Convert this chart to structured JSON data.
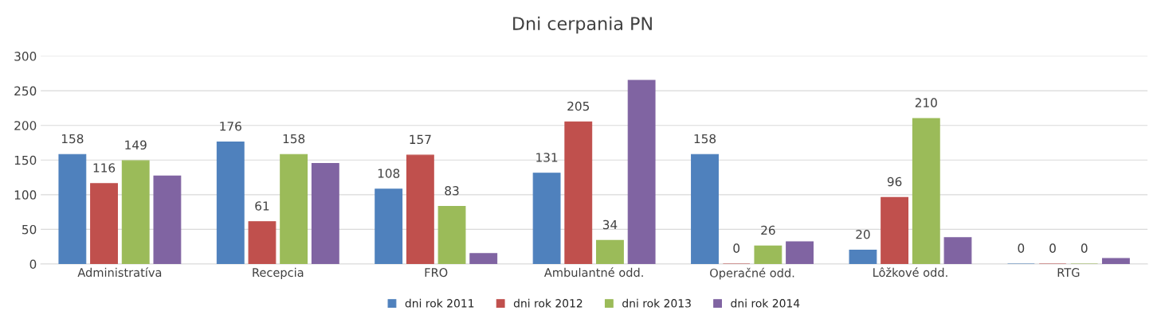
{
  "chart_data": {
    "type": "bar",
    "title": "Dni cerpania PN",
    "categories": [
      "Administratíva",
      "Recepcia",
      "FRO",
      "Ambulantné odd.",
      "Operačné odd.",
      "Lôžkové odd.",
      "RTG"
    ],
    "series": [
      {
        "name": "dni rok 2011",
        "color": "#4f81bd",
        "values": [
          158,
          176,
          108,
          131,
          158,
          20,
          0
        ],
        "value_labels": [
          "158",
          "176",
          "108",
          "131",
          "158",
          "20",
          "0"
        ]
      },
      {
        "name": "dni rok 2012",
        "color": "#c0504d",
        "values": [
          116,
          61,
          157,
          205,
          0,
          96,
          0
        ],
        "value_labels": [
          "116",
          "61",
          "157",
          "205",
          "0",
          "96",
          "0"
        ]
      },
      {
        "name": "dni rok 2013",
        "color": "#9bbb59",
        "values": [
          149,
          158,
          83,
          34,
          26,
          210,
          0
        ],
        "value_labels": [
          "149",
          "158",
          "83",
          "34",
          "26",
          "210",
          "0"
        ]
      },
      {
        "name": "dni rok 2014",
        "color": "#8064a2",
        "values": [
          127,
          145,
          15,
          265,
          32,
          38,
          8
        ]
      }
    ],
    "ylim": [
      0,
      300
    ],
    "yticks": [
      0,
      50,
      100,
      150,
      200,
      250,
      300
    ],
    "grid": "y",
    "legend": "bottom"
  }
}
